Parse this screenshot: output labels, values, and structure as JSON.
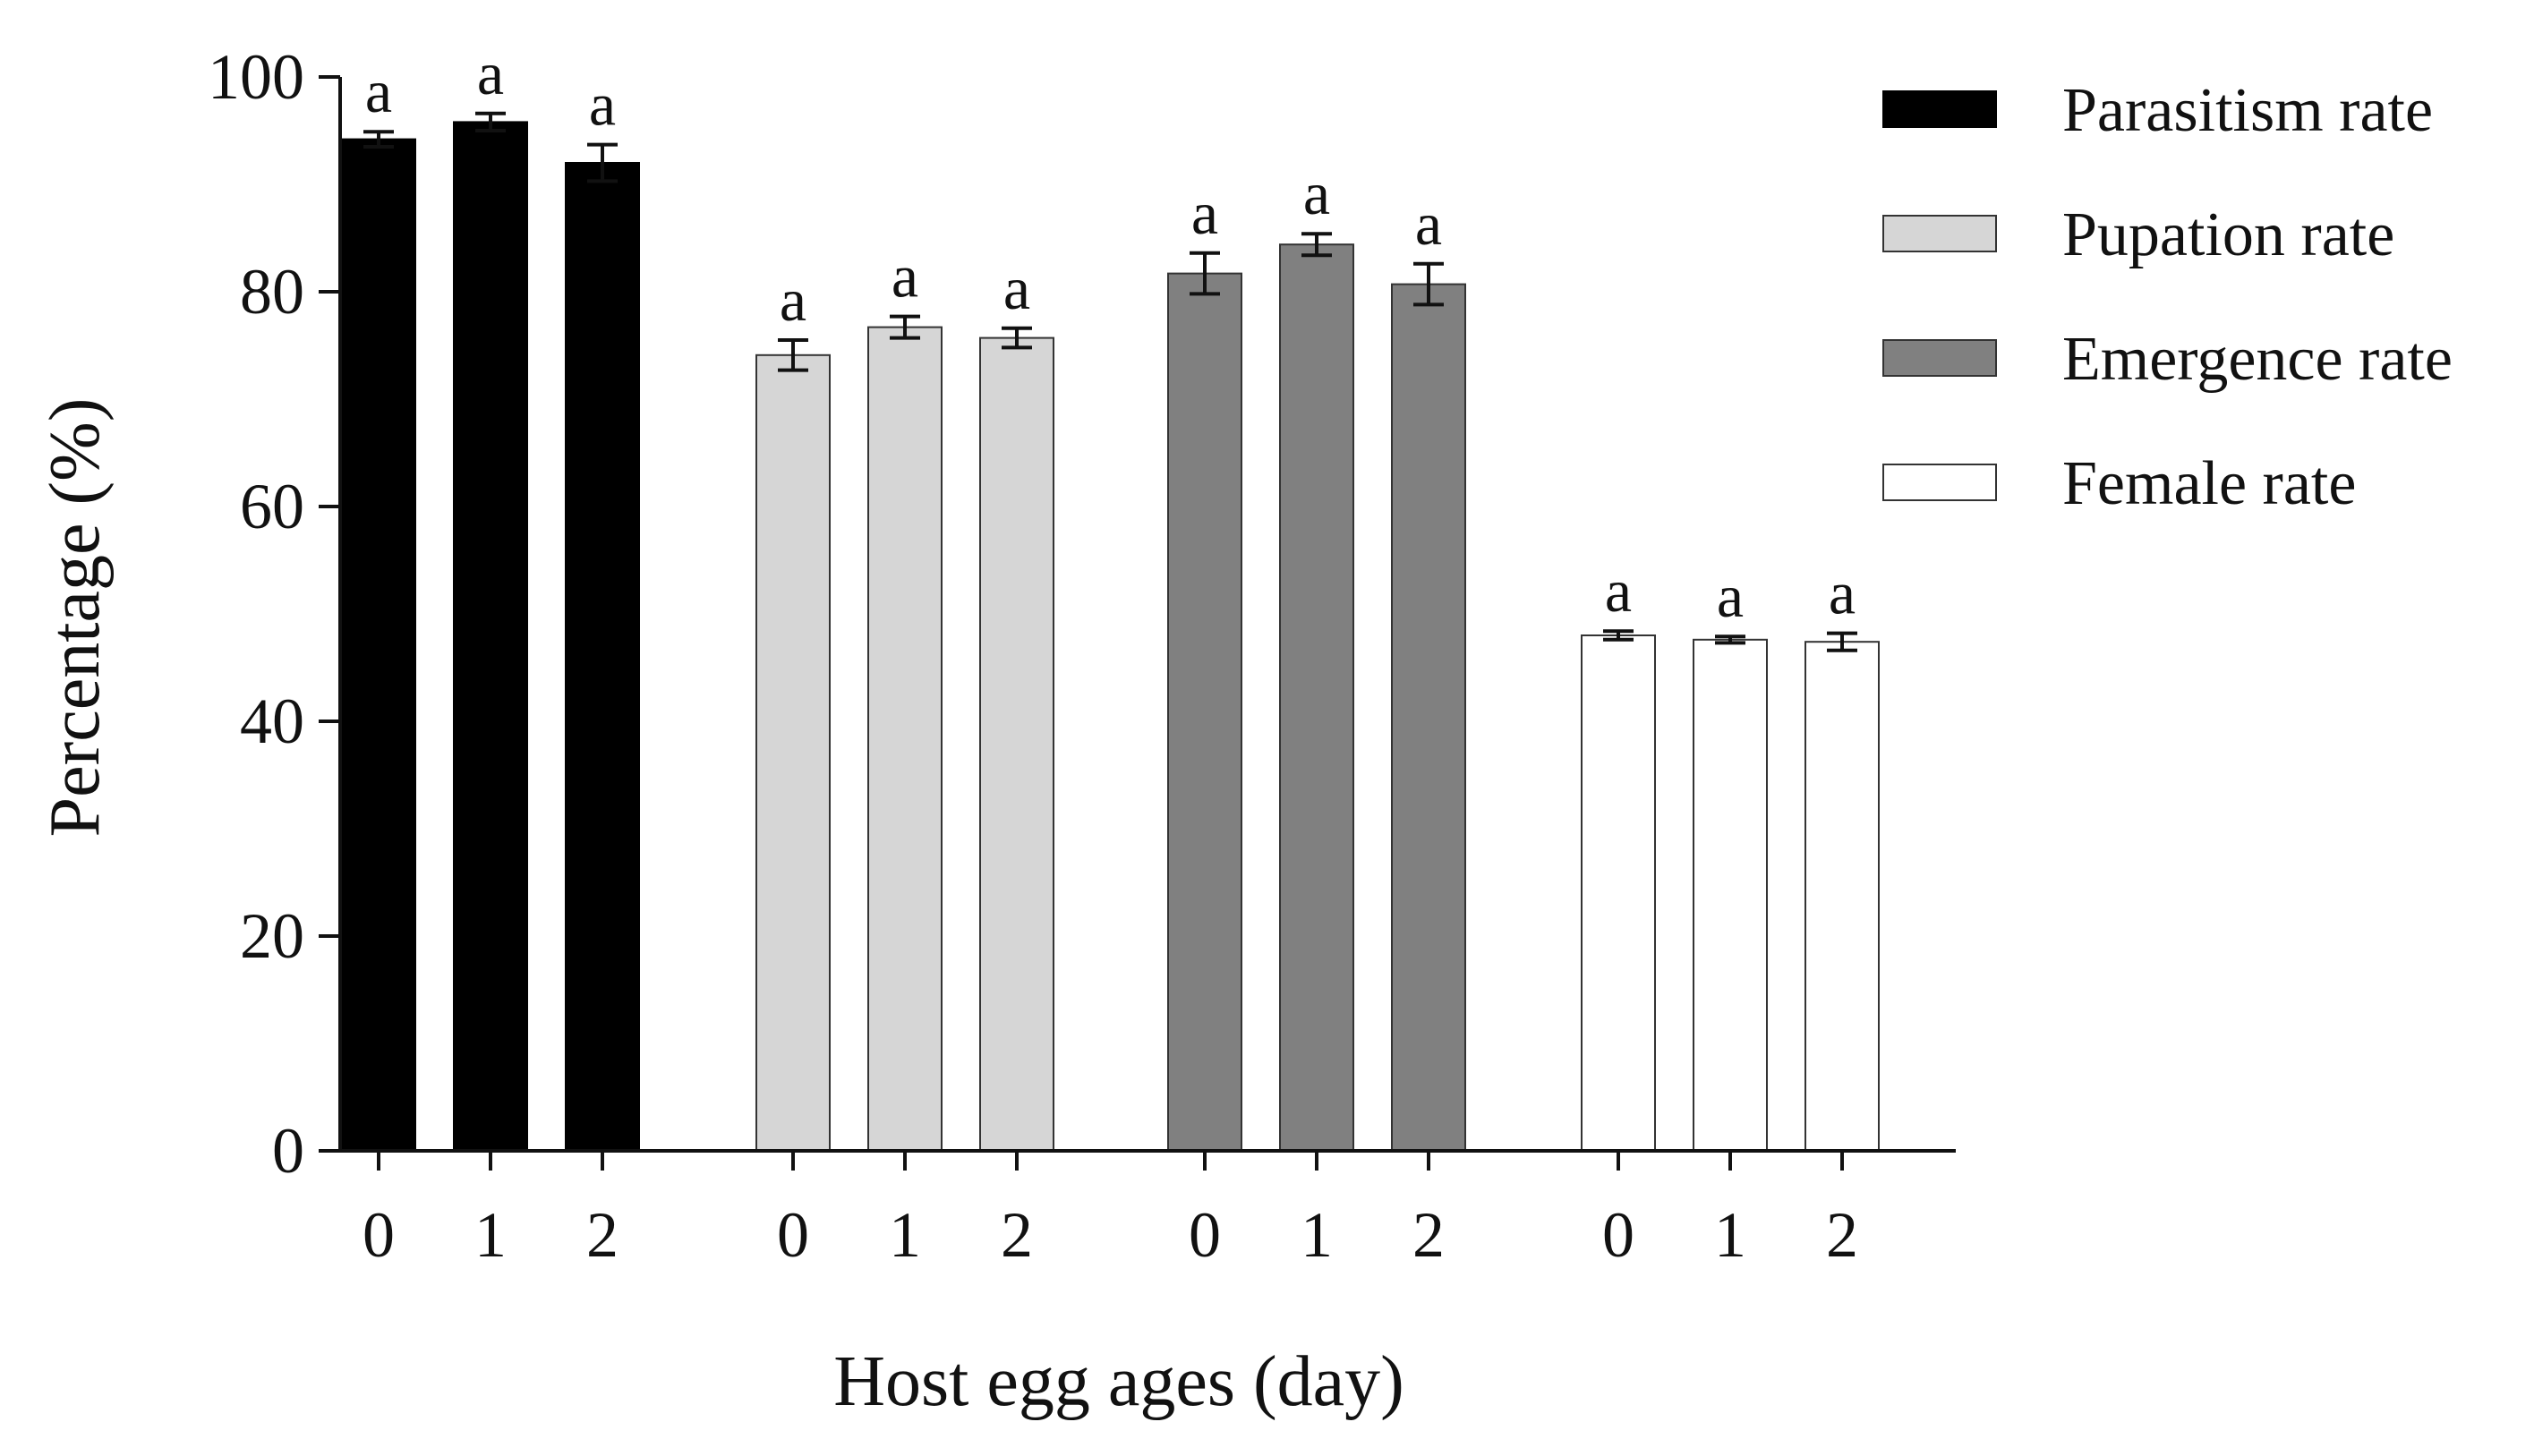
{
  "chart_data": {
    "type": "bar",
    "title": "",
    "xlabel": "Host egg ages (day)",
    "ylabel": "Percentage (%)",
    "ylim": [
      0,
      100
    ],
    "yticks": [
      "0",
      "20",
      "40",
      "60",
      "80",
      "100"
    ],
    "categories": [
      "0",
      "1",
      "2"
    ],
    "legend_position": "top-right",
    "series": [
      {
        "name": "Parasitism rate",
        "color": "#000000",
        "stroke": "#000000",
        "values": [
          94.2,
          95.8,
          92.0
        ],
        "errors": [
          0.7,
          0.8,
          1.7
        ],
        "significance": [
          "a",
          "a",
          "a"
        ]
      },
      {
        "name": "Pupation rate",
        "color": "#d6d6d6",
        "stroke": "#333333",
        "values": [
          74.1,
          76.7,
          75.7
        ],
        "errors": [
          1.4,
          1.0,
          0.9
        ],
        "significance": [
          "a",
          "a",
          "a"
        ]
      },
      {
        "name": "Emergence rate",
        "color": "#808080",
        "stroke": "#333333",
        "values": [
          81.7,
          84.4,
          80.7
        ],
        "errors": [
          1.9,
          1.0,
          1.9
        ],
        "significance": [
          "a",
          "a",
          "a"
        ]
      },
      {
        "name": "Female rate",
        "color": "#ffffff",
        "stroke": "#333333",
        "values": [
          48.0,
          47.6,
          47.4
        ],
        "errors": [
          0.4,
          0.3,
          0.8
        ],
        "significance": [
          "a",
          "a",
          "a"
        ]
      }
    ]
  }
}
